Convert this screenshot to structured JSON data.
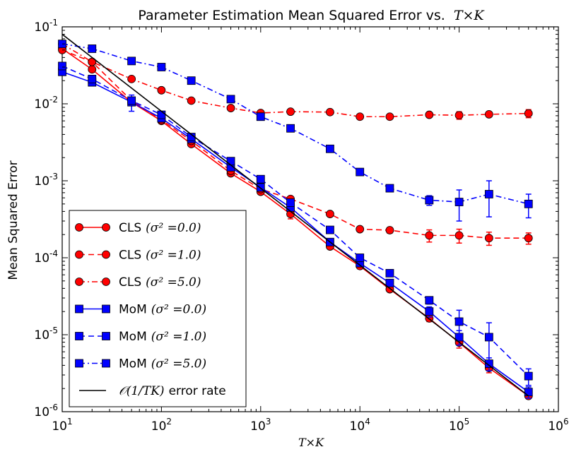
{
  "chart_data": {
    "type": "line",
    "title": "Parameter Estimation Mean Squared Error vs.",
    "title_math": "T×K",
    "xlabel": "T×K",
    "ylabel": "Mean Squared Error",
    "xscale": "log",
    "yscale": "log",
    "xlim": [
      10,
      1000000
    ],
    "ylim": [
      1e-06,
      0.1
    ],
    "x_ticks": [
      {
        "base": "10",
        "exp": "1"
      },
      {
        "base": "10",
        "exp": "2"
      },
      {
        "base": "10",
        "exp": "3"
      },
      {
        "base": "10",
        "exp": "4"
      },
      {
        "base": "10",
        "exp": "5"
      },
      {
        "base": "10",
        "exp": "6"
      }
    ],
    "y_ticks": [
      {
        "base": "10",
        "exp": "-6"
      },
      {
        "base": "10",
        "exp": "-5"
      },
      {
        "base": "10",
        "exp": "-4"
      },
      {
        "base": "10",
        "exp": "-3"
      },
      {
        "base": "10",
        "exp": "-2"
      },
      {
        "base": "10",
        "exp": "-1"
      }
    ],
    "legend_position": "lower-left",
    "x": [
      10,
      20,
      50,
      100,
      200,
      500,
      1000,
      2000,
      5000,
      10000,
      20000,
      50000,
      100000,
      200000,
      500000
    ],
    "series": [
      {
        "name": "CLS",
        "legend_math": "(σ² =0.0)",
        "color": "#ff0000",
        "marker": "circle",
        "linestyle": "solid",
        "values": [
          0.052,
          0.028,
          0.0105,
          0.006,
          0.003,
          0.00125,
          0.00072,
          0.00037,
          0.00014,
          7.8e-05,
          3.9e-05,
          1.63e-05,
          7.9e-06,
          3.7e-06,
          1.6e-06
        ],
        "err": [
          0,
          0,
          0,
          0,
          0,
          0,
          0,
          5e-05,
          0,
          0,
          0,
          1.5e-06,
          1.2e-06,
          5e-07,
          0
        ]
      },
      {
        "name": "CLS",
        "legend_math": "(σ² =1.0)",
        "color": "#ff0000",
        "marker": "circle",
        "linestyle": "dashed",
        "values": [
          0.05,
          0.035,
          0.011,
          0.0062,
          0.0033,
          0.00135,
          0.00078,
          0.00058,
          0.00037,
          0.000235,
          0.000228,
          0.000195,
          0.000195,
          0.00018,
          0.00018
        ],
        "err": [
          0,
          0,
          0,
          0,
          0,
          0,
          0,
          0,
          0,
          0,
          2e-05,
          3.5e-05,
          4e-05,
          3.5e-05,
          3e-05
        ]
      },
      {
        "name": "CLS",
        "legend_math": "(σ² =5.0)",
        "color": "#ff0000",
        "marker": "circle",
        "linestyle": "dashdot",
        "values": [
          0.06,
          0.035,
          0.021,
          0.015,
          0.011,
          0.0088,
          0.0076,
          0.0079,
          0.0078,
          0.0068,
          0.0068,
          0.0072,
          0.0071,
          0.0073,
          0.0075
        ],
        "err": [
          0,
          0,
          0,
          0,
          0,
          0,
          0,
          0,
          0,
          0,
          0,
          0,
          0.0008,
          0,
          0.0009
        ]
      },
      {
        "name": "MoM",
        "legend_math": "(σ² =0.0)",
        "color": "#0000ff",
        "marker": "square",
        "linestyle": "solid",
        "values": [
          0.026,
          0.019,
          0.0105,
          0.0065,
          0.0035,
          0.0015,
          0.00082,
          0.00045,
          0.00016,
          8.5e-05,
          4.7e-05,
          2e-05,
          9.3e-06,
          4.2e-06,
          1.8e-06
        ],
        "err": [
          0,
          0,
          0.0025,
          0,
          0,
          0,
          0,
          0,
          0,
          0,
          0,
          3e-06,
          2e-06,
          8e-07,
          3e-07
        ]
      },
      {
        "name": "MoM",
        "legend_math": "(σ² =1.0)",
        "color": "#0000ff",
        "marker": "square",
        "linestyle": "dashed",
        "values": [
          0.031,
          0.021,
          0.011,
          0.0072,
          0.0037,
          0.0018,
          0.00105,
          0.00052,
          0.00023,
          0.0001,
          6.3e-05,
          2.8e-05,
          1.48e-05,
          9.3e-06,
          2.9e-06
        ],
        "err": [
          0,
          0,
          0,
          0,
          0,
          0,
          0,
          0,
          0,
          0,
          0,
          3e-06,
          6e-06,
          5e-06,
          7e-07
        ]
      },
      {
        "name": "MoM",
        "legend_math": "(σ² =5.0)",
        "color": "#0000ff",
        "marker": "square",
        "linestyle": "dashdot",
        "values": [
          0.06,
          0.052,
          0.036,
          0.03,
          0.02,
          0.0115,
          0.0068,
          0.0048,
          0.0026,
          0.0013,
          0.0008,
          0.00056,
          0.00053,
          0.00067,
          0.0005
        ],
        "err": [
          0,
          0,
          0,
          0,
          0,
          0,
          0,
          0,
          0,
          0,
          0,
          8e-05,
          0.00023,
          0.00033,
          0.00017
        ]
      },
      {
        "name": "error rate",
        "legend_math": "𝒪(1/TK)",
        "color": "#000000",
        "marker": "none",
        "linestyle": "solid",
        "x": [
          10,
          500000
        ],
        "values": [
          0.08,
          1.6e-06
        ],
        "err": []
      }
    ]
  }
}
